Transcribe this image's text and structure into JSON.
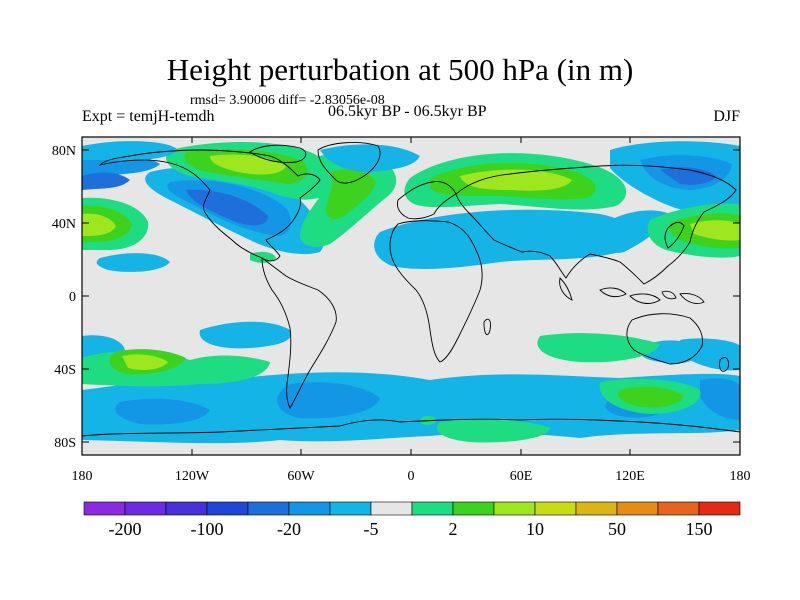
{
  "title": "Height perturbation at 500 hPa (in m)",
  "stats_line": "rmsd= 3.90006 diff= -2.83056e-08",
  "left_label": "Expt = temjH-temdh",
  "center_label": "06.5kyr BP - 06.5kyr BP",
  "right_label": "DJF",
  "lat_ticks": [
    "80N",
    "40N",
    "0",
    "40S",
    "80S"
  ],
  "lon_ticks": [
    "180",
    "120W",
    "60W",
    "0",
    "60E",
    "120E",
    "180"
  ],
  "colorbar": {
    "colors": [
      "#8a2be2",
      "#6a2be2",
      "#4632d8",
      "#2046d8",
      "#1e6edc",
      "#1496e6",
      "#14b4e6",
      "#e6e6e6",
      "#1edc82",
      "#3cd21e",
      "#9ee61e",
      "#c8dc14",
      "#dcb414",
      "#e68c14",
      "#e6641e",
      "#e62814"
    ],
    "labels": [
      "-200",
      "-100",
      "-20",
      "-5",
      "2",
      "10",
      "50",
      "150"
    ]
  },
  "field_colors": {
    "background": "#e6e6e6",
    "light_blue": "#14b4e6",
    "mid_blue": "#1496e6",
    "deep_blue": "#1e6edc",
    "teal_green": "#1edc82",
    "green": "#3cd21e",
    "yellow_green": "#9ee61e"
  }
}
